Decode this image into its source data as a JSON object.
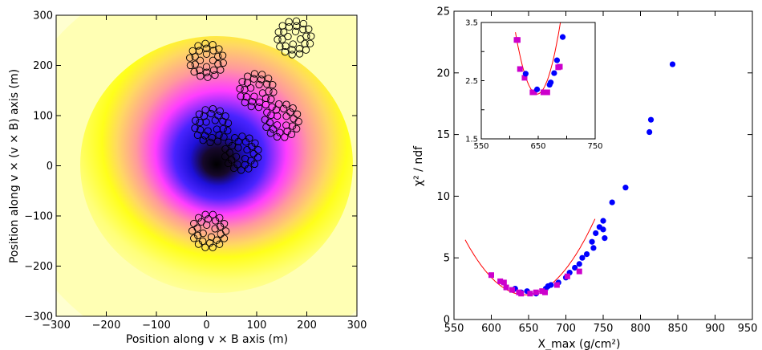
{
  "chart_data": [
    {
      "type": "heatmap",
      "title": "",
      "xlabel": "Position along v × B axis (m)",
      "ylabel": "Position along v × (v × B) axis (m)",
      "xlim": [
        -300,
        300
      ],
      "ylim": [
        -300,
        300
      ],
      "x_ticks": [
        "−300",
        "−200",
        "−100",
        "0",
        "100",
        "200",
        "300"
      ],
      "y_ticks": [
        "−300",
        "−200",
        "−100",
        "0",
        "100",
        "200",
        "300"
      ],
      "colormap": [
        "#000000",
        "#0000ff",
        "#ff00ff",
        "#ffff00",
        "#ffffc8"
      ],
      "intensity_peak": [
        30,
        10
      ],
      "antenna_stations": [
        {
          "x": 0,
          "y": 210
        },
        {
          "x": 175,
          "y": 255
        },
        {
          "x": 100,
          "y": 150
        },
        {
          "x": 10,
          "y": 80
        },
        {
          "x": 150,
          "y": 90
        },
        {
          "x": 70,
          "y": 25
        },
        {
          "x": 5,
          "y": -130
        }
      ]
    },
    {
      "type": "scatter",
      "title": "",
      "xlabel": "X_max (g/cm²)",
      "ylabel": "χ² / ndf",
      "xlim": [
        550,
        950
      ],
      "ylim": [
        0,
        25
      ],
      "x_ticks": [
        "550",
        "600",
        "650",
        "700",
        "750",
        "800",
        "850",
        "900",
        "950"
      ],
      "y_ticks": [
        "0",
        "5",
        "10",
        "15",
        "20",
        "25"
      ],
      "series": [
        {
          "color": "#0000ff",
          "marker": "circle",
          "points": [
            [
              632,
              2.5
            ],
            [
              640,
              2.2
            ],
            [
              648,
              2.3
            ],
            [
              660,
              2.1
            ],
            [
              673,
              2.5
            ],
            [
              676,
              2.7
            ],
            [
              680,
              2.8
            ],
            [
              690,
              3.0
            ],
            [
              700,
              3.4
            ],
            [
              705,
              3.8
            ],
            [
              712,
              4.2
            ],
            [
              718,
              4.5
            ],
            [
              722,
              5.0
            ],
            [
              728,
              5.3
            ],
            [
              735,
              6.3
            ],
            [
              737,
              5.8
            ],
            [
              740,
              7.0
            ],
            [
              745,
              7.5
            ],
            [
              750,
              8.0
            ],
            [
              752,
              6.6
            ],
            [
              750,
              7.3
            ],
            [
              762,
              9.5
            ],
            [
              780,
              10.7
            ],
            [
              812,
              15.2
            ],
            [
              814,
              16.2
            ],
            [
              843,
              20.7
            ]
          ]
        },
        {
          "color": "#cc00cc",
          "marker": "square",
          "points": [
            [
              600,
              3.6
            ],
            [
              612,
              3.1
            ],
            [
              617,
              3.0
            ],
            [
              620,
              2.6
            ],
            [
              628,
              2.4
            ],
            [
              637,
              2.2
            ],
            [
              640,
              2.1
            ],
            [
              652,
              2.1
            ],
            [
              660,
              2.2
            ],
            [
              668,
              2.3
            ],
            [
              672,
              2.2
            ],
            [
              688,
              2.8
            ],
            [
              702,
              3.5
            ],
            [
              718,
              3.9
            ]
          ]
        }
      ],
      "fit": {
        "color": "#ff0000",
        "curve": "parabola",
        "vertex": [
          645,
          2.0
        ],
        "curvature": 0.000697,
        "x_range": [
          565,
          740
        ]
      },
      "inset": {
        "xlim": [
          550,
          750
        ],
        "ylim": [
          1.5,
          3.5
        ],
        "x_ticks": [
          "550",
          "650",
          "750"
        ],
        "y_ticks": [
          "1.5",
          "2.5",
          "3.5"
        ],
        "magenta_points": [
          [
            612,
            3.2
          ],
          [
            614,
            3.2
          ],
          [
            618,
            2.7
          ],
          [
            626,
            2.55
          ],
          [
            640,
            2.3
          ],
          [
            643,
            2.3
          ],
          [
            659,
            2.3
          ],
          [
            666,
            2.3
          ],
          [
            685,
            2.73
          ],
          [
            688,
            2.74
          ]
        ],
        "blue_points": [
          [
            628,
            2.62
          ],
          [
            648,
            2.35
          ],
          [
            670,
            2.43
          ],
          [
            672,
            2.47
          ],
          [
            678,
            2.63
          ],
          [
            683,
            2.85
          ],
          [
            693,
            3.25
          ]
        ],
        "fit_vertex": [
          648,
          2.27
        ],
        "fit_curvature": 0.000735,
        "fit_x_range": [
          610,
          700
        ]
      }
    }
  ]
}
